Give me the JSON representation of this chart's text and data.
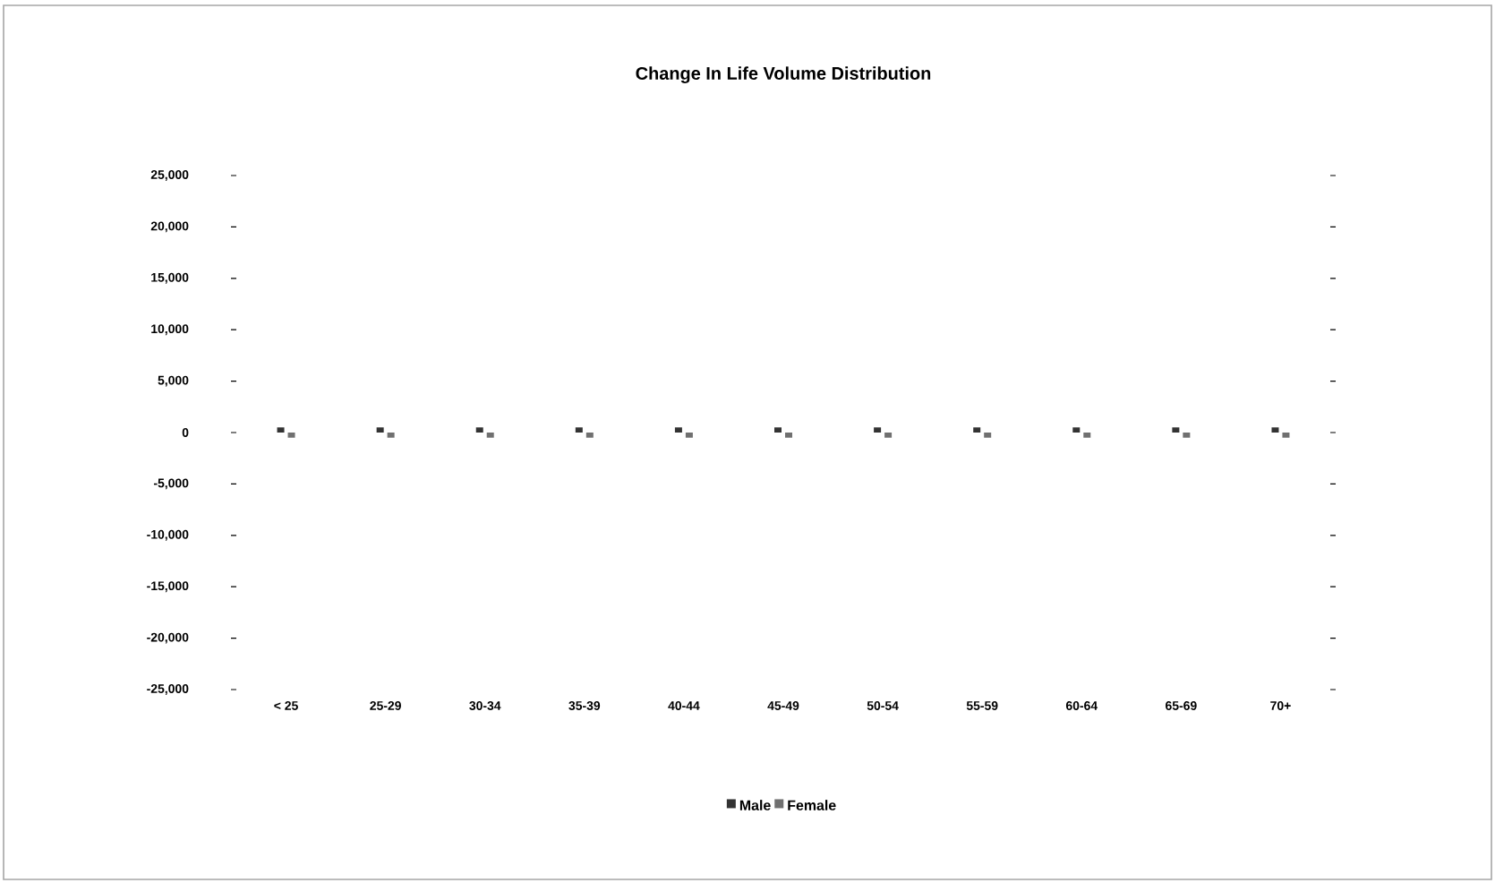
{
  "chart_data": {
    "type": "bar",
    "title": "Change In Life Volume Distribution",
    "categories": [
      "< 25",
      "25-29",
      "30-34",
      "35-39",
      "40-44",
      "45-49",
      "50-54",
      "55-59",
      "60-64",
      "65-69",
      "70+"
    ],
    "series": [
      {
        "name": "Male",
        "color": "#333333",
        "values": [
          500,
          500,
          500,
          500,
          500,
          500,
          500,
          500,
          500,
          500,
          500
        ]
      },
      {
        "name": "Female",
        "color": "#707070",
        "values": [
          -500,
          -500,
          -500,
          -500,
          -500,
          -500,
          -500,
          -500,
          -500,
          -500,
          -500
        ]
      }
    ],
    "ylim": [
      -25000,
      25000
    ],
    "yticks": [
      {
        "value": -25000,
        "label": "-25,000"
      },
      {
        "value": -20000,
        "label": "-20,000"
      },
      {
        "value": -15000,
        "label": "-15,000"
      },
      {
        "value": -10000,
        "label": "-10,000"
      },
      {
        "value": -5000,
        "label": "-5,000"
      },
      0,
      {
        "value": 5000,
        "label": "5,000"
      },
      {
        "value": 10000,
        "label": "10,000"
      },
      {
        "value": 15000,
        "label": "15,000"
      },
      {
        "value": 20000,
        "label": "20,000"
      },
      {
        "value": 25000,
        "label": "25,000"
      }
    ],
    "legend": "bottom",
    "grid": false
  }
}
